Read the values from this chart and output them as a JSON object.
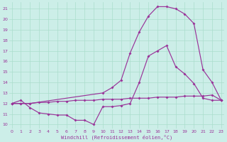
{
  "xlabel": "Windchill (Refroidissement éolien,°C)",
  "ylabel_ticks": [
    10,
    11,
    12,
    13,
    14,
    15,
    16,
    17,
    18,
    19,
    20,
    21
  ],
  "xticks": [
    0,
    1,
    2,
    3,
    4,
    5,
    6,
    7,
    8,
    9,
    10,
    11,
    12,
    13,
    14,
    15,
    16,
    17,
    18,
    19,
    20,
    21,
    22,
    23
  ],
  "xlim": [
    -0.3,
    23.3
  ],
  "ylim": [
    9.6,
    21.6
  ],
  "bg_color": "#cceee8",
  "grid_color": "#aaddcc",
  "line_color": "#993399",
  "curve1_x": [
    0,
    1,
    2,
    3,
    4,
    5,
    6,
    7,
    8,
    9,
    10,
    11,
    12,
    13,
    14,
    15,
    16,
    17,
    18,
    19,
    20,
    21,
    22,
    23
  ],
  "curve1_y": [
    12.0,
    12.3,
    11.6,
    11.1,
    11.0,
    10.9,
    10.9,
    10.4,
    10.4,
    10.0,
    11.7,
    11.7,
    11.8,
    12.0,
    14.0,
    16.5,
    17.0,
    17.5,
    15.5,
    14.8,
    13.9,
    12.5,
    12.3,
    12.3
  ],
  "curve2_x": [
    0,
    1,
    2,
    3,
    4,
    5,
    6,
    7,
    8,
    9,
    10,
    11,
    12,
    13,
    14,
    15,
    16,
    17,
    18,
    19,
    20,
    21,
    22,
    23
  ],
  "curve2_y": [
    12.0,
    12.0,
    12.0,
    12.1,
    12.1,
    12.2,
    12.2,
    12.3,
    12.3,
    12.3,
    12.4,
    12.4,
    12.4,
    12.5,
    12.5,
    12.5,
    12.6,
    12.6,
    12.6,
    12.7,
    12.7,
    12.7,
    12.8,
    12.3
  ],
  "curve3_x": [
    0,
    1,
    2,
    10,
    11,
    12,
    13,
    14,
    15,
    16,
    17,
    18,
    19,
    20,
    21,
    22,
    23
  ],
  "curve3_y": [
    12.0,
    12.0,
    12.0,
    13.0,
    13.5,
    14.2,
    16.8,
    18.8,
    20.3,
    21.2,
    21.2,
    21.0,
    20.5,
    19.6,
    15.2,
    14.0,
    12.3
  ]
}
